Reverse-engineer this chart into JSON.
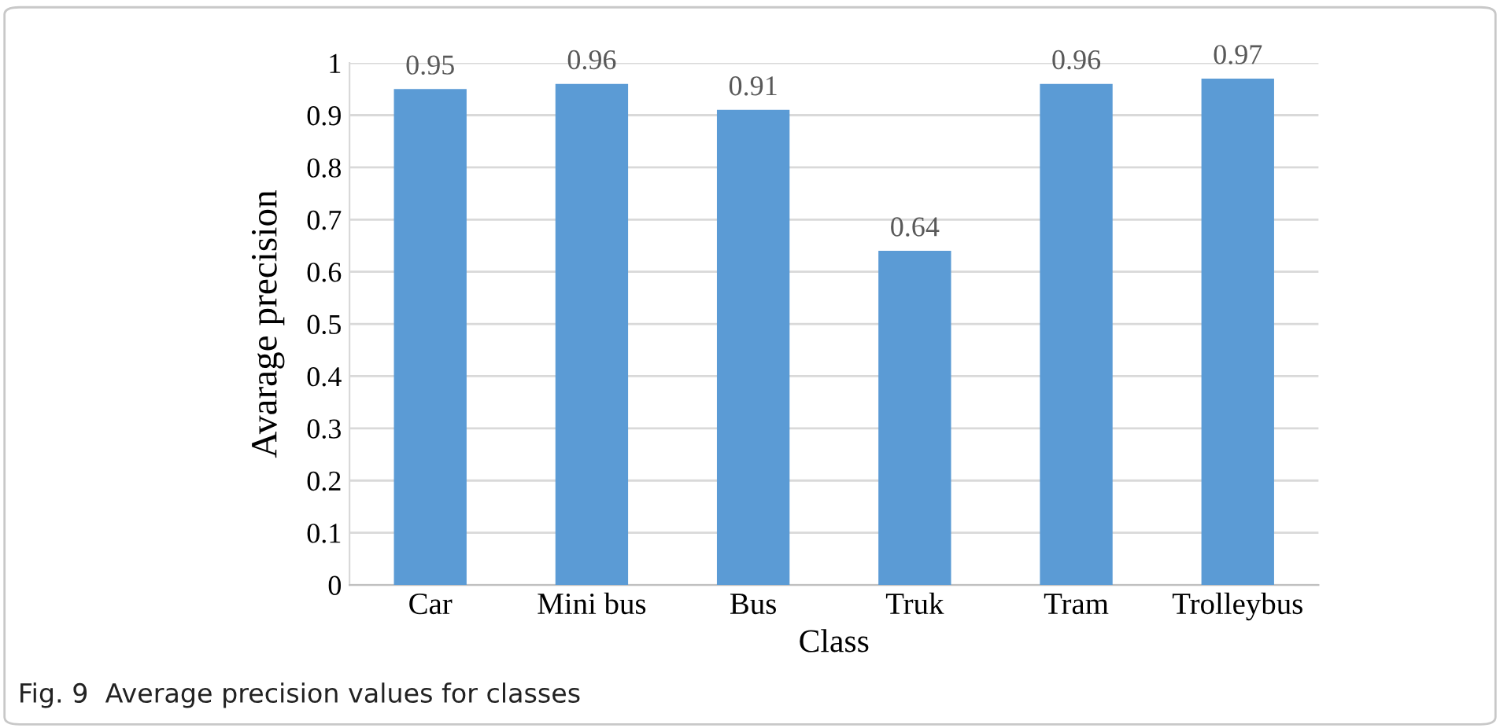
{
  "chart_data": {
    "type": "bar",
    "categories": [
      "Car",
      "Mini bus",
      "Bus",
      "Truk",
      "Tram",
      "Trolleybus"
    ],
    "values": [
      0.95,
      0.96,
      0.91,
      0.64,
      0.96,
      0.97
    ],
    "color": "#5b9bd5",
    "xlabel": "Class",
    "ylabel": "Avarage precision",
    "ylim": [
      0,
      1
    ],
    "yticks": [
      0,
      0.1,
      0.2,
      0.3,
      0.4,
      0.5,
      0.6,
      0.7,
      0.8,
      0.9,
      1
    ],
    "grid": "y",
    "data_labels": true,
    "annotations": [
      "Fig. 9  Average precision values for classes"
    ]
  }
}
